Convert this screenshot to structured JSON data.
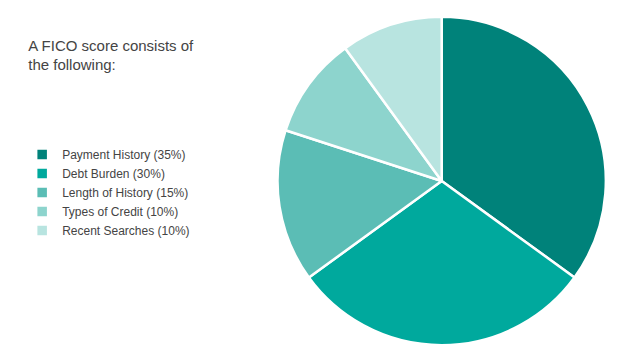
{
  "chart_data": {
    "type": "pie",
    "title": "A FICO score consists of\nthe following:",
    "categories": [
      "Payment History (35%)",
      "Debt Burden (30%)",
      "Length of History (15%)",
      "Types of Credit (10%)",
      "Recent Searches (10%)"
    ],
    "values": [
      35,
      30,
      15,
      10,
      10
    ],
    "colors": [
      "#00827a",
      "#00a99d",
      "#5bbdb5",
      "#8dd4cd",
      "#b8e4e0"
    ],
    "legend": "left"
  }
}
